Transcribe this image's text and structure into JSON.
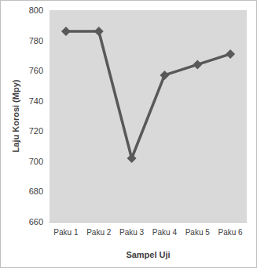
{
  "chart_data": {
    "type": "line",
    "x_label": "Sampel Uji",
    "y_label": "Laju Korosi (Mpy)",
    "categories": [
      "Paku 1",
      "Paku 2",
      "Paku 3",
      "Paku 4",
      "Paku 5",
      "Paku 6"
    ],
    "values": [
      786,
      786,
      702,
      757,
      764,
      771
    ],
    "color": "#595959",
    "marker": "diamond",
    "ylim": [
      660,
      800
    ],
    "yticks": [
      660,
      680,
      700,
      720,
      740,
      760,
      780,
      800
    ],
    "grid": false
  }
}
